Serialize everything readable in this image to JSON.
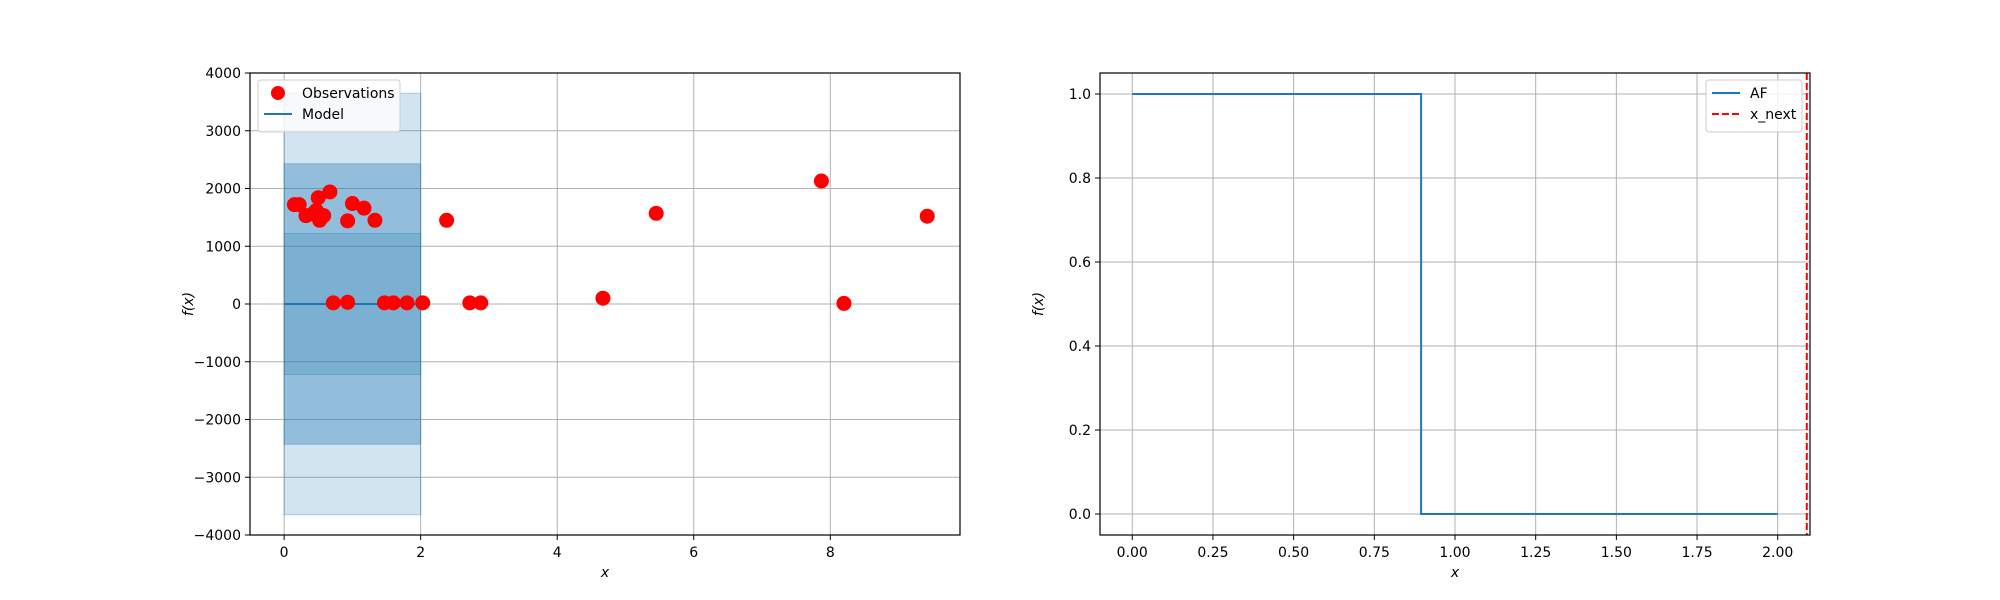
{
  "chart_data": [
    {
      "type": "scatter",
      "xlabel": "x",
      "ylabel": "f(x)",
      "xlim": [
        -0.5,
        9.9
      ],
      "ylim": [
        -4000,
        4000
      ],
      "xticks": [
        0,
        2,
        4,
        6,
        8
      ],
      "xtick_labels": [
        "0",
        "2",
        "4",
        "6",
        "8"
      ],
      "yticks": [
        -4000,
        -3000,
        -2000,
        -1000,
        0,
        1000,
        2000,
        3000,
        4000
      ],
      "ytick_labels": [
        "−4000",
        "−3000",
        "−2000",
        "−1000",
        "0",
        "1000",
        "2000",
        "3000",
        "4000"
      ],
      "grid": true,
      "legend": {
        "placement": "upper-left",
        "entries": [
          "Observations",
          "Model"
        ]
      },
      "observations": {
        "name": "Observations",
        "color": "#ff0000",
        "points": [
          [
            0.15,
            1720
          ],
          [
            0.22,
            1720
          ],
          [
            0.32,
            1530
          ],
          [
            0.42,
            1560
          ],
          [
            0.47,
            1620
          ],
          [
            0.5,
            1840
          ],
          [
            0.52,
            1450
          ],
          [
            0.58,
            1530
          ],
          [
            0.67,
            1940
          ],
          [
            0.72,
            20
          ],
          [
            0.93,
            1440
          ],
          [
            0.93,
            30
          ],
          [
            1.0,
            1740
          ],
          [
            1.17,
            1660
          ],
          [
            1.33,
            1450
          ],
          [
            1.47,
            20
          ],
          [
            1.6,
            20
          ],
          [
            1.8,
            20
          ],
          [
            2.03,
            20
          ],
          [
            2.38,
            1450
          ],
          [
            2.72,
            20
          ],
          [
            2.88,
            20
          ],
          [
            4.67,
            100
          ],
          [
            5.45,
            1570
          ],
          [
            7.87,
            2130
          ],
          [
            8.2,
            10
          ],
          [
            9.42,
            1520
          ]
        ]
      },
      "model": {
        "name": "Model",
        "color": "#1f77b4",
        "x": [
          0,
          2
        ],
        "mean": [
          0,
          0
        ],
        "bands": [
          {
            "lower": -1220,
            "upper": 1220,
            "color": "#1f77b4"
          },
          {
            "lower": -2430,
            "upper": 2430,
            "color": "#1f77b4"
          },
          {
            "lower": -3650,
            "upper": 3650,
            "color": "#1f77b4"
          }
        ]
      }
    },
    {
      "type": "line",
      "xlabel": "x",
      "ylabel": "f(x)",
      "xlim": [
        -0.1,
        2.1
      ],
      "ylim": [
        -0.05,
        1.05
      ],
      "xticks": [
        0,
        0.25,
        0.5,
        0.75,
        1.0,
        1.25,
        1.5,
        1.75,
        2.0
      ],
      "xtick_labels": [
        "0.00",
        "0.25",
        "0.50",
        "0.75",
        "1.00",
        "1.25",
        "1.50",
        "1.75",
        "2.00"
      ],
      "yticks": [
        0,
        0.2,
        0.4,
        0.6,
        0.8,
        1.0
      ],
      "ytick_labels": [
        "0.0",
        "0.2",
        "0.4",
        "0.6",
        "0.8",
        "1.0"
      ],
      "grid": true,
      "legend": {
        "placement": "upper-right",
        "entries": [
          "AF",
          "x_next"
        ]
      },
      "series": [
        {
          "name": "AF",
          "color": "#1f77b4",
          "x": [
            0,
            0.895,
            0.895,
            2.0
          ],
          "y": [
            1,
            1,
            0,
            0
          ]
        }
      ],
      "vline": {
        "name": "x_next",
        "x": 2.09,
        "color": "#ff0000",
        "style": "dashed"
      }
    }
  ]
}
